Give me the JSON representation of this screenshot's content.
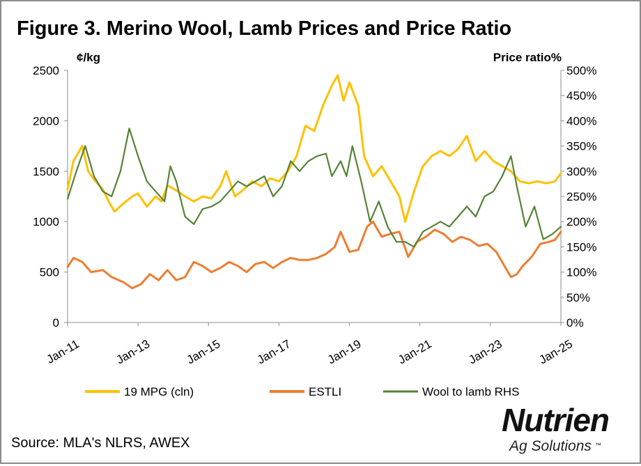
{
  "title": "Figure 3. Merino Wool, Lamb Prices and Price Ratio",
  "source": "Source: MLA's NLRS, AWEX",
  "logo": {
    "name": "Nutrien",
    "sub": "Ag Solutions",
    "mark": "™"
  },
  "chart_data": {
    "type": "line",
    "left_unit": "¢/kg",
    "right_unit": "Price ratio%",
    "ylim_left": [
      0,
      2500
    ],
    "ylim_right": [
      0,
      500
    ],
    "yticks_left": [
      "0",
      "500",
      "1000",
      "1500",
      "2000",
      "2500"
    ],
    "yticks_right": [
      "0%",
      "50%",
      "100%",
      "150%",
      "200%",
      "250%",
      "300%",
      "350%",
      "400%",
      "450%",
      "500%"
    ],
    "xticks": [
      "Jan-11",
      "Jan-13",
      "Jan-15",
      "Jan-17",
      "Jan-19",
      "Jan-21",
      "Jan-23",
      "Jan-25"
    ],
    "xrange": [
      "2011-01",
      "2025-01"
    ],
    "grid": false,
    "legend_position": "bottom",
    "series": [
      {
        "name": "19 MPG (cln)",
        "axis": "left",
        "color": "#FFC000",
        "points": [
          [
            "2011-01",
            1320
          ],
          [
            "2011-03",
            1600
          ],
          [
            "2011-06",
            1750
          ],
          [
            "2011-08",
            1500
          ],
          [
            "2011-10",
            1420
          ],
          [
            "2012-01",
            1320
          ],
          [
            "2012-03",
            1200
          ],
          [
            "2012-05",
            1100
          ],
          [
            "2012-08",
            1180
          ],
          [
            "2012-11",
            1250
          ],
          [
            "2013-01",
            1280
          ],
          [
            "2013-04",
            1150
          ],
          [
            "2013-07",
            1250
          ],
          [
            "2013-09",
            1200
          ],
          [
            "2013-11",
            1360
          ],
          [
            "2014-02",
            1310
          ],
          [
            "2014-05",
            1250
          ],
          [
            "2014-08",
            1200
          ],
          [
            "2014-11",
            1250
          ],
          [
            "2015-02",
            1230
          ],
          [
            "2015-05",
            1350
          ],
          [
            "2015-07",
            1500
          ],
          [
            "2015-10",
            1250
          ],
          [
            "2016-01",
            1320
          ],
          [
            "2016-04",
            1400
          ],
          [
            "2016-07",
            1350
          ],
          [
            "2016-10",
            1430
          ],
          [
            "2017-01",
            1400
          ],
          [
            "2017-04",
            1500
          ],
          [
            "2017-07",
            1650
          ],
          [
            "2017-10",
            1950
          ],
          [
            "2018-01",
            1900
          ],
          [
            "2018-04",
            2150
          ],
          [
            "2018-07",
            2350
          ],
          [
            "2018-09",
            2450
          ],
          [
            "2018-11",
            2200
          ],
          [
            "2019-01",
            2380
          ],
          [
            "2019-04",
            2150
          ],
          [
            "2019-06",
            1650
          ],
          [
            "2019-09",
            1450
          ],
          [
            "2019-12",
            1550
          ],
          [
            "2020-03",
            1400
          ],
          [
            "2020-06",
            1250
          ],
          [
            "2020-08",
            1000
          ],
          [
            "2020-11",
            1300
          ],
          [
            "2021-02",
            1550
          ],
          [
            "2021-05",
            1650
          ],
          [
            "2021-08",
            1700
          ],
          [
            "2021-11",
            1650
          ],
          [
            "2022-02",
            1720
          ],
          [
            "2022-05",
            1850
          ],
          [
            "2022-08",
            1600
          ],
          [
            "2022-11",
            1700
          ],
          [
            "2023-02",
            1600
          ],
          [
            "2023-05",
            1550
          ],
          [
            "2023-08",
            1500
          ],
          [
            "2023-11",
            1400
          ],
          [
            "2024-02",
            1380
          ],
          [
            "2024-05",
            1400
          ],
          [
            "2024-08",
            1380
          ],
          [
            "2024-11",
            1400
          ],
          [
            "2025-01",
            1480
          ]
        ]
      },
      {
        "name": "ESTLI",
        "axis": "left",
        "color": "#ED7D31",
        "points": [
          [
            "2011-01",
            550
          ],
          [
            "2011-03",
            640
          ],
          [
            "2011-06",
            600
          ],
          [
            "2011-09",
            500
          ],
          [
            "2012-01",
            520
          ],
          [
            "2012-04",
            450
          ],
          [
            "2012-08",
            400
          ],
          [
            "2012-11",
            340
          ],
          [
            "2013-02",
            380
          ],
          [
            "2013-05",
            480
          ],
          [
            "2013-08",
            420
          ],
          [
            "2013-11",
            520
          ],
          [
            "2014-02",
            420
          ],
          [
            "2014-05",
            450
          ],
          [
            "2014-08",
            600
          ],
          [
            "2014-11",
            560
          ],
          [
            "2015-02",
            500
          ],
          [
            "2015-05",
            540
          ],
          [
            "2015-08",
            600
          ],
          [
            "2015-11",
            560
          ],
          [
            "2016-02",
            500
          ],
          [
            "2016-05",
            580
          ],
          [
            "2016-08",
            600
          ],
          [
            "2016-11",
            540
          ],
          [
            "2017-02",
            600
          ],
          [
            "2017-05",
            640
          ],
          [
            "2017-08",
            620
          ],
          [
            "2017-11",
            620
          ],
          [
            "2018-02",
            640
          ],
          [
            "2018-05",
            680
          ],
          [
            "2018-08",
            750
          ],
          [
            "2018-10",
            900
          ],
          [
            "2019-01",
            700
          ],
          [
            "2019-04",
            720
          ],
          [
            "2019-07",
            950
          ],
          [
            "2019-09",
            1000
          ],
          [
            "2019-12",
            850
          ],
          [
            "2020-03",
            880
          ],
          [
            "2020-06",
            900
          ],
          [
            "2020-09",
            650
          ],
          [
            "2020-12",
            800
          ],
          [
            "2021-03",
            850
          ],
          [
            "2021-06",
            920
          ],
          [
            "2021-09",
            880
          ],
          [
            "2021-12",
            800
          ],
          [
            "2022-03",
            850
          ],
          [
            "2022-06",
            820
          ],
          [
            "2022-09",
            760
          ],
          [
            "2022-12",
            780
          ],
          [
            "2023-03",
            700
          ],
          [
            "2023-06",
            550
          ],
          [
            "2023-08",
            450
          ],
          [
            "2023-10",
            480
          ],
          [
            "2023-12",
            560
          ],
          [
            "2024-03",
            650
          ],
          [
            "2024-06",
            780
          ],
          [
            "2024-09",
            800
          ],
          [
            "2024-11",
            820
          ],
          [
            "2025-01",
            900
          ]
        ]
      },
      {
        "name": "Wool to lamb RHS",
        "axis": "right",
        "color": "#548235",
        "points": [
          [
            "2011-01",
            245
          ],
          [
            "2011-04",
            300
          ],
          [
            "2011-07",
            350
          ],
          [
            "2011-10",
            290
          ],
          [
            "2012-01",
            260
          ],
          [
            "2012-04",
            250
          ],
          [
            "2012-07",
            300
          ],
          [
            "2012-10",
            385
          ],
          [
            "2013-01",
            330
          ],
          [
            "2013-04",
            280
          ],
          [
            "2013-07",
            260
          ],
          [
            "2013-10",
            240
          ],
          [
            "2013-12",
            310
          ],
          [
            "2014-02",
            280
          ],
          [
            "2014-05",
            210
          ],
          [
            "2014-08",
            195
          ],
          [
            "2014-11",
            225
          ],
          [
            "2015-02",
            230
          ],
          [
            "2015-05",
            240
          ],
          [
            "2015-08",
            260
          ],
          [
            "2015-11",
            280
          ],
          [
            "2016-02",
            270
          ],
          [
            "2016-05",
            280
          ],
          [
            "2016-08",
            290
          ],
          [
            "2016-11",
            250
          ],
          [
            "2017-02",
            270
          ],
          [
            "2017-05",
            320
          ],
          [
            "2017-08",
            300
          ],
          [
            "2017-11",
            320
          ],
          [
            "2018-02",
            330
          ],
          [
            "2018-05",
            335
          ],
          [
            "2018-07",
            290
          ],
          [
            "2018-10",
            320
          ],
          [
            "2018-12",
            290
          ],
          [
            "2019-02",
            350
          ],
          [
            "2019-05",
            280
          ],
          [
            "2019-08",
            200
          ],
          [
            "2019-11",
            240
          ],
          [
            "2020-02",
            190
          ],
          [
            "2020-05",
            160
          ],
          [
            "2020-08",
            160
          ],
          [
            "2020-11",
            150
          ],
          [
            "2021-02",
            180
          ],
          [
            "2021-05",
            190
          ],
          [
            "2021-08",
            200
          ],
          [
            "2021-11",
            190
          ],
          [
            "2022-02",
            210
          ],
          [
            "2022-05",
            230
          ],
          [
            "2022-08",
            210
          ],
          [
            "2022-11",
            250
          ],
          [
            "2023-02",
            260
          ],
          [
            "2023-05",
            290
          ],
          [
            "2023-08",
            330
          ],
          [
            "2023-10",
            270
          ],
          [
            "2024-01",
            190
          ],
          [
            "2024-04",
            230
          ],
          [
            "2024-07",
            165
          ],
          [
            "2024-10",
            175
          ],
          [
            "2025-01",
            190
          ]
        ]
      }
    ]
  }
}
